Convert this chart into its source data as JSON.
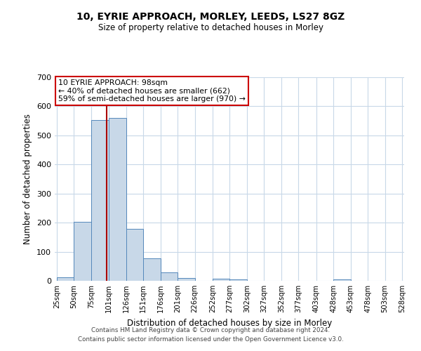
{
  "title": "10, EYRIE APPROACH, MORLEY, LEEDS, LS27 8GZ",
  "subtitle": "Size of property relative to detached houses in Morley",
  "xlabel": "Distribution of detached houses by size in Morley",
  "ylabel": "Number of detached properties",
  "bin_edges": [
    25,
    50,
    75,
    101,
    126,
    151,
    176,
    201,
    226,
    252,
    277,
    302,
    327,
    352,
    377,
    403,
    428,
    453,
    478,
    503,
    528
  ],
  "counts": [
    12,
    203,
    553,
    560,
    178,
    78,
    30,
    10,
    0,
    8,
    5,
    0,
    0,
    0,
    0,
    0,
    5,
    0,
    0,
    0
  ],
  "tick_labels": [
    "25sqm",
    "50sqm",
    "75sqm",
    "101sqm",
    "126sqm",
    "151sqm",
    "176sqm",
    "201sqm",
    "226sqm",
    "252sqm",
    "277sqm",
    "302sqm",
    "327sqm",
    "352sqm",
    "377sqm",
    "403sqm",
    "428sqm",
    "453sqm",
    "478sqm",
    "503sqm",
    "528sqm"
  ],
  "bar_color": "#c8d8e8",
  "bar_edge_color": "#5588bb",
  "vline_x": 98,
  "vline_color": "#aa0000",
  "annotation_line1": "10 EYRIE APPROACH: 98sqm",
  "annotation_line2": "← 40% of detached houses are smaller (662)",
  "annotation_line3": "59% of semi-detached houses are larger (970) →",
  "annotation_box_facecolor": "#ffffff",
  "annotation_box_edgecolor": "#cc0000",
  "ylim": [
    0,
    700
  ],
  "yticks": [
    0,
    100,
    200,
    300,
    400,
    500,
    600,
    700
  ],
  "footer1": "Contains HM Land Registry data © Crown copyright and database right 2024.",
  "footer2": "Contains public sector information licensed under the Open Government Licence v3.0.",
  "background_color": "#ffffff",
  "grid_color": "#c8d8e8"
}
